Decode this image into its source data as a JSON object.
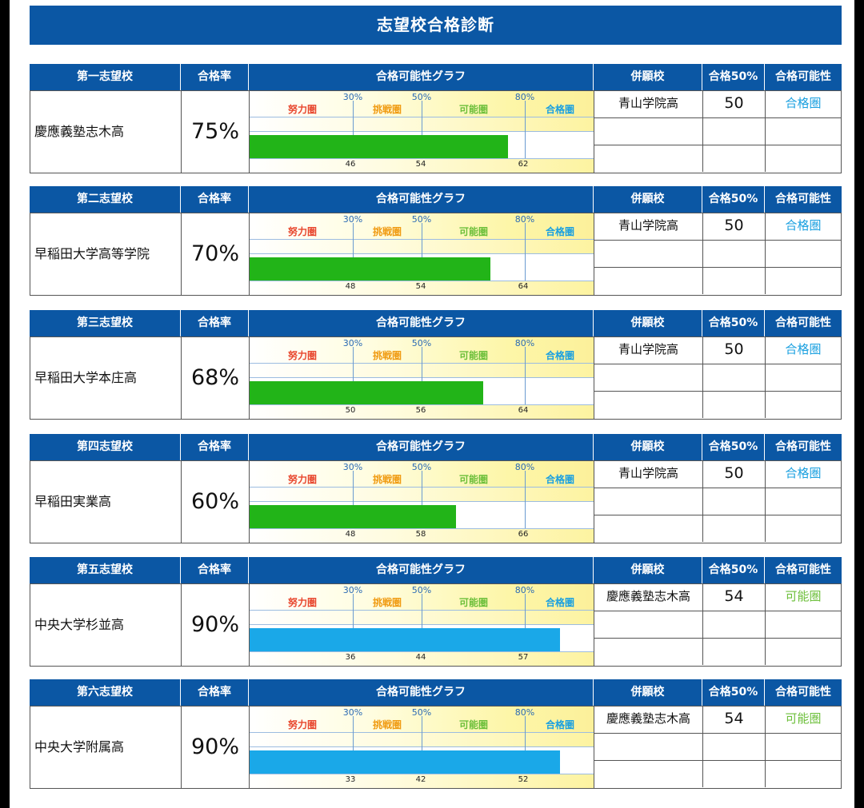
{
  "title": "志望校合格診断",
  "headers": {
    "rate": "合格率",
    "graph": "合格可能性グラフ",
    "alt_school": "併願校",
    "alt_50": "合格50%",
    "alt_poss": "合格可能性"
  },
  "graph_labels": {
    "pct_30": "30%",
    "pct_50": "50%",
    "pct_80": "80%",
    "zone_effort": "努力圏",
    "zone_challenge": "挑戦圏",
    "zone_possible": "可能圏",
    "zone_pass": "合格圏"
  },
  "colors": {
    "header_blue": "#0b57a4",
    "bar_green": "#22b418",
    "bar_blue": "#1aa8e8",
    "zone_effort": "#e8462d",
    "zone_challenge": "#f09b12",
    "zone_possible": "#6cbf3a",
    "zone_pass": "#1aa0e0"
  },
  "icons": [],
  "choices": [
    {
      "rank_label": "第一志望校",
      "school": "慶應義塾志木高",
      "rate": "75%",
      "rate_value": 75,
      "bar_color": "green",
      "scores": [
        "46",
        "54",
        "62"
      ],
      "alt": {
        "school": "青山学院高",
        "score50": "50",
        "possibility": "合格圏",
        "possibility_color": "pass"
      }
    },
    {
      "rank_label": "第二志望校",
      "school": "早稲田大学高等学院",
      "rate": "70%",
      "rate_value": 70,
      "bar_color": "green",
      "scores": [
        "48",
        "54",
        "64"
      ],
      "alt": {
        "school": "青山学院高",
        "score50": "50",
        "possibility": "合格圏",
        "possibility_color": "pass"
      }
    },
    {
      "rank_label": "第三志望校",
      "school": "早稲田大学本庄高",
      "rate": "68%",
      "rate_value": 68,
      "bar_color": "green",
      "scores": [
        "50",
        "56",
        "64"
      ],
      "alt": {
        "school": "青山学院高",
        "score50": "50",
        "possibility": "合格圏",
        "possibility_color": "pass"
      }
    },
    {
      "rank_label": "第四志望校",
      "school": "早稲田実業高",
      "rate": "60%",
      "rate_value": 60,
      "bar_color": "green",
      "scores": [
        "48",
        "58",
        "66"
      ],
      "alt": {
        "school": "青山学院高",
        "score50": "50",
        "possibility": "合格圏",
        "possibility_color": "pass"
      }
    },
    {
      "rank_label": "第五志望校",
      "school": "中央大学杉並高",
      "rate": "90%",
      "rate_value": 90,
      "bar_color": "blue",
      "scores": [
        "36",
        "44",
        "57"
      ],
      "alt": {
        "school": "慶應義塾志木高",
        "score50": "54",
        "possibility": "可能圏",
        "possibility_color": "possible"
      }
    },
    {
      "rank_label": "第六志望校",
      "school": "中央大学附属高",
      "rate": "90%",
      "rate_value": 90,
      "bar_color": "blue",
      "scores": [
        "33",
        "42",
        "52"
      ],
      "alt": {
        "school": "慶應義塾志木高",
        "score50": "54",
        "possibility": "可能圏",
        "possibility_color": "possible"
      }
    }
  ]
}
